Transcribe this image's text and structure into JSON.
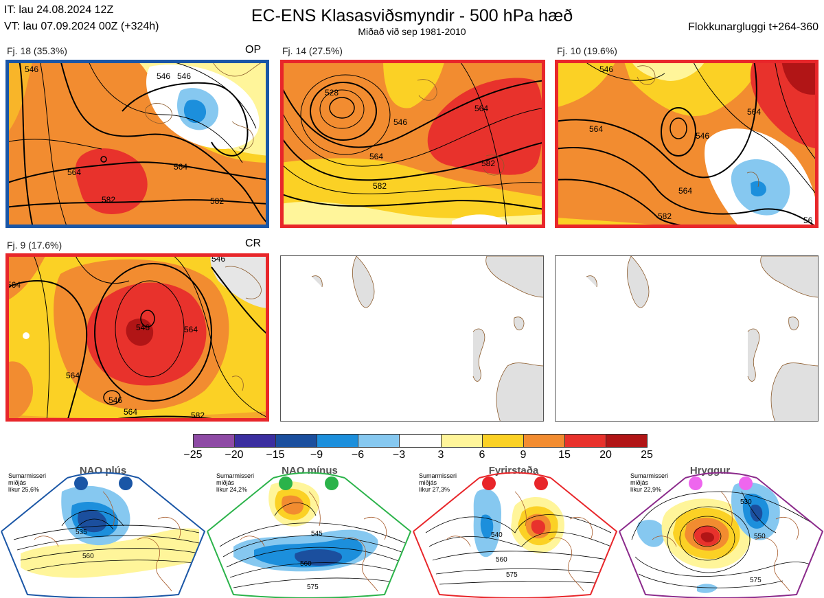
{
  "header": {
    "it_line": "IT: lau 24.08.2024 12Z",
    "vt_line": "VT: lau 07.09.2024 00Z  (+324h)",
    "title": "EC-ENS Klasasviðsmyndir - 500 hPa hæð",
    "subtitle": "Miðað við sep 1981-2010",
    "window": "Flokkunargluggi t+264-360"
  },
  "panels": [
    {
      "label": "Fj. 18 (35.3%)",
      "tag": "OP",
      "frame_color": "#1a56a6",
      "contours": [
        "546",
        "564",
        "582",
        "582",
        "564",
        "546",
        "546"
      ]
    },
    {
      "label": "Fj. 14 (27.5%)",
      "tag": "",
      "frame_color": "#e8262a",
      "contours": [
        "528",
        "546",
        "564",
        "564",
        "582",
        "582"
      ]
    },
    {
      "label": "Fj. 10 (19.6%)",
      "tag": "",
      "frame_color": "#e8262a",
      "contours": [
        "546",
        "564",
        "546",
        "564",
        "582",
        "564",
        "56"
      ]
    },
    {
      "label": "Fj. 9 (17.6%)",
      "tag": "CR",
      "frame_color": "#e8262a",
      "contours": [
        "546",
        "546",
        "564",
        "564",
        "546",
        "564",
        "582",
        "564"
      ]
    }
  ],
  "colorbar": {
    "colors": [
      "#8e4aa5",
      "#3b2ea0",
      "#1b4f9e",
      "#1c8fdc",
      "#86c8f0",
      "#ffffff",
      "#fff59a",
      "#fbd125",
      "#f28c30",
      "#e8322c",
      "#b11516"
    ],
    "ticks": [
      "−25",
      "−20",
      "−15",
      "−9",
      "−6",
      "−3",
      "3",
      "6",
      "9",
      "15",
      "20",
      "25"
    ]
  },
  "regimes": [
    {
      "name": "NAO plús",
      "season": "Sumarmisseri",
      "mid": "miðjás",
      "prob": "líkur 25,6%",
      "dot_color": "#1a56a6",
      "frame_color": "#1a56a6",
      "contours": [
        "535",
        "560"
      ]
    },
    {
      "name": "NAO mínus",
      "season": "Sumarmisseri",
      "mid": "miðjás",
      "prob": "líkur 24,2%",
      "dot_color": "#2bb34a",
      "frame_color": "#2bb34a",
      "contours": [
        "545",
        "560",
        "575"
      ]
    },
    {
      "name": "Fyrirstaða",
      "season": "Sumarmisseri",
      "mid": "miðjás",
      "prob": "líkur 27,3%",
      "dot_color": "#e8262a",
      "frame_color": "#e8262a",
      "contours": [
        "540",
        "560",
        "575"
      ]
    },
    {
      "name": "Hryggur",
      "season": "Sumarmisseri",
      "mid": "miðjás",
      "prob": "líkur 22,9%",
      "dot_color": "#ee66ee",
      "frame_color": "#8b2a8b",
      "contours": [
        "530",
        "550",
        "575"
      ]
    }
  ],
  "chart_data": {
    "type": "heatmap",
    "title": "EC-ENS Klasasviðsmyndir - 500 hPa hæð",
    "subtitle": "Miðað við sep 1981-2010",
    "clusters": [
      {
        "name": "Fj. 18",
        "percent": 35.3,
        "marker": "OP",
        "contour_labels_dam": [
          546,
          564,
          582
        ]
      },
      {
        "name": "Fj. 14",
        "percent": 27.5,
        "marker": "",
        "contour_labels_dam": [
          528,
          546,
          564,
          582
        ]
      },
      {
        "name": "Fj. 10",
        "percent": 19.6,
        "marker": "",
        "contour_labels_dam": [
          546,
          564,
          582
        ]
      },
      {
        "name": "Fj. 9",
        "percent": 17.6,
        "marker": "CR",
        "contour_labels_dam": [
          546,
          564,
          582
        ]
      }
    ],
    "regimes": [
      {
        "name": "NAO plús",
        "probability_percent": 25.6
      },
      {
        "name": "NAO mínus",
        "probability_percent": 24.2
      },
      {
        "name": "Fyrirstaða",
        "probability_percent": 27.3
      },
      {
        "name": "Hryggur",
        "probability_percent": 22.9
      }
    ],
    "colorbar_levels": [
      -25,
      -20,
      -15,
      -9,
      -6,
      -3,
      3,
      6,
      9,
      15,
      20,
      25
    ]
  }
}
